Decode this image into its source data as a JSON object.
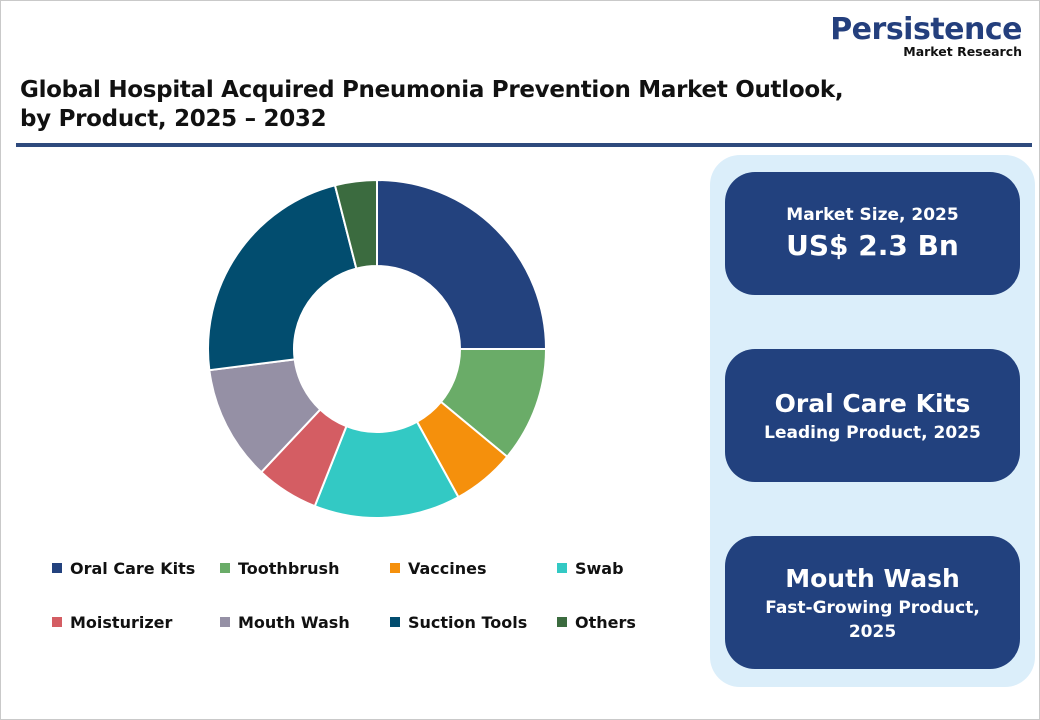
{
  "logo": {
    "main": "Persistence",
    "sub": "Market Research"
  },
  "header": {
    "title_line1": "Global Hospital Acquired Pneumonia Prevention Market Outlook,",
    "title_line2": "by Product, 2025 – 2032"
  },
  "legend": [
    {
      "label": "Oral Care Kits",
      "color": "#23427e"
    },
    {
      "label": "Toothbrush",
      "color": "#6aac68"
    },
    {
      "label": "Vaccines",
      "color": "#f5900c"
    },
    {
      "label": "Swab",
      "color": "#33c9c4"
    },
    {
      "label": "Moisturizer",
      "color": "#d45d63"
    },
    {
      "label": "Mouth Wash",
      "color": "#9590a5"
    },
    {
      "label": "Suction Tools",
      "color": "#024d6f"
    },
    {
      "label": "Others",
      "color": "#3b6b3f"
    }
  ],
  "cards": {
    "market_size": {
      "label": "Market Size, 2025",
      "value": "US$ 2.3 Bn"
    },
    "leading": {
      "value": "Oral Care Kits",
      "label": "Leading Product, 2025"
    },
    "fastest": {
      "value": "Mouth Wash",
      "label": "Fast-Growing Product, 2025"
    }
  },
  "chart_data": {
    "type": "pie",
    "subtype": "donut",
    "title": "Global Hospital Acquired Pneumonia Prevention Market Outlook, by Product, 2025 – 2032",
    "categories": [
      "Oral Care Kits",
      "Toothbrush",
      "Vaccines",
      "Swab",
      "Moisturizer",
      "Mouth Wash",
      "Suction Tools",
      "Others"
    ],
    "values": [
      25,
      11,
      6,
      14,
      6,
      11,
      23,
      4
    ],
    "unit": "% share (estimated from slice angles)",
    "colors": [
      "#23427e",
      "#6aac68",
      "#f5900c",
      "#33c9c4",
      "#d45d63",
      "#9590a5",
      "#024d6f",
      "#3b6b3f"
    ],
    "start_angle": "12 o'clock, clockwise",
    "legend_position": "bottom",
    "data_labels": false
  }
}
